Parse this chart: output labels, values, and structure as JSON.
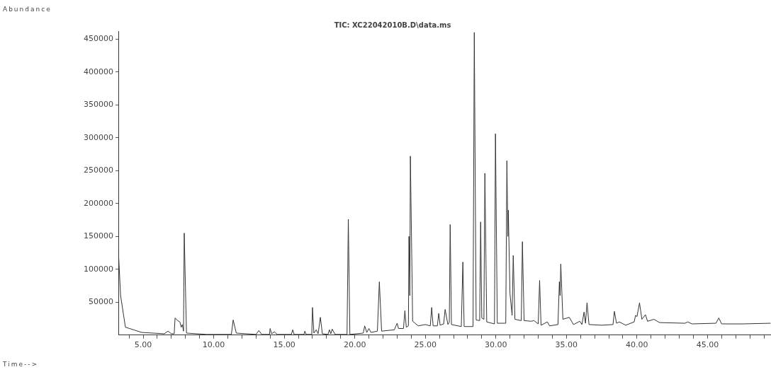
{
  "chart_data": {
    "type": "line",
    "title": "TIC: XC22042010B.D\\data.ms",
    "annotations": [
      "Abundance",
      "Time-->"
    ],
    "color": "#333333",
    "marker": "none",
    "grid": false,
    "legend": false,
    "xlim": [
      3.24,
      49.5
    ],
    "ylim": [
      0,
      462000
    ],
    "xticks": [
      {
        "value": 4,
        "label": null
      },
      {
        "value": 5,
        "label": "5.00"
      },
      {
        "value": 6,
        "label": null
      },
      {
        "value": 7,
        "label": null
      },
      {
        "value": 8,
        "label": null
      },
      {
        "value": 9,
        "label": null
      },
      {
        "value": 10,
        "label": "10.00"
      },
      {
        "value": 11,
        "label": null
      },
      {
        "value": 12,
        "label": null
      },
      {
        "value": 13,
        "label": null
      },
      {
        "value": 14,
        "label": null
      },
      {
        "value": 15,
        "label": "15.00"
      },
      {
        "value": 16,
        "label": null
      },
      {
        "value": 17,
        "label": null
      },
      {
        "value": 18,
        "label": null
      },
      {
        "value": 19,
        "label": null
      },
      {
        "value": 20,
        "label": "20.00"
      },
      {
        "value": 21,
        "label": null
      },
      {
        "value": 22,
        "label": null
      },
      {
        "value": 23,
        "label": null
      },
      {
        "value": 24,
        "label": null
      },
      {
        "value": 25,
        "label": "25.00"
      },
      {
        "value": 26,
        "label": null
      },
      {
        "value": 27,
        "label": null
      },
      {
        "value": 28,
        "label": null
      },
      {
        "value": 29,
        "label": null
      },
      {
        "value": 30,
        "label": "30.00"
      },
      {
        "value": 31,
        "label": null
      },
      {
        "value": 32,
        "label": null
      },
      {
        "value": 33,
        "label": null
      },
      {
        "value": 34,
        "label": null
      },
      {
        "value": 35,
        "label": "35.00"
      },
      {
        "value": 36,
        "label": null
      },
      {
        "value": 37,
        "label": null
      },
      {
        "value": 38,
        "label": null
      },
      {
        "value": 39,
        "label": null
      },
      {
        "value": 40,
        "label": "40.00"
      },
      {
        "value": 41,
        "label": null
      },
      {
        "value": 42,
        "label": null
      },
      {
        "value": 43,
        "label": null
      },
      {
        "value": 44,
        "label": null
      },
      {
        "value": 45,
        "label": "45.00"
      },
      {
        "value": 46,
        "label": null
      },
      {
        "value": 47,
        "label": null
      },
      {
        "value": 48,
        "label": null
      },
      {
        "value": 49,
        "label": null
      }
    ],
    "yticks": [
      50000,
      100000,
      150000,
      200000,
      250000,
      300000,
      350000,
      400000,
      450000
    ],
    "x": [
      3.24,
      3.4,
      3.74,
      4.9,
      6.5,
      6.76,
      7.0,
      7.2,
      7.26,
      7.45,
      7.6,
      7.7,
      7.78,
      7.86,
      7.91,
      8.07,
      9.5,
      11.25,
      11.38,
      11.6,
      13.0,
      13.2,
      13.4,
      13.95,
      14.0,
      14.1,
      14.3,
      14.5,
      15.5,
      15.6,
      15.7,
      16.4,
      16.46,
      16.55,
      16.95,
      17.0,
      17.1,
      17.27,
      17.4,
      17.56,
      17.7,
      18.1,
      18.2,
      18.3,
      18.4,
      18.6,
      19.45,
      19.54,
      19.65,
      20.6,
      20.7,
      20.85,
      21.0,
      21.15,
      21.6,
      21.74,
      21.9,
      22.8,
      23.0,
      23.1,
      23.45,
      23.55,
      23.65,
      23.8,
      23.84,
      23.9,
      23.94,
      24.1,
      24.5,
      25.0,
      25.35,
      25.45,
      25.55,
      25.85,
      25.95,
      26.05,
      26.3,
      26.4,
      26.6,
      26.7,
      26.76,
      26.85,
      27.55,
      27.66,
      27.75,
      28.38,
      28.47,
      28.6,
      28.85,
      28.92,
      29.0,
      29.15,
      29.22,
      29.35,
      29.9,
      29.97,
      30.1,
      30.7,
      30.78,
      30.85,
      30.88,
      31.0,
      31.15,
      31.23,
      31.35,
      31.8,
      31.88,
      32.0,
      32.5,
      32.7,
      33.0,
      33.1,
      33.2,
      33.65,
      33.8,
      34.4,
      34.5,
      34.55,
      34.6,
      34.75,
      35.2,
      35.5,
      35.95,
      36.1,
      36.25,
      36.35,
      36.46,
      36.6,
      37.5,
      38.3,
      38.4,
      38.55,
      38.75,
      39.2,
      39.8,
      39.9,
      40.0,
      40.18,
      40.35,
      40.6,
      40.75,
      41.2,
      41.6,
      43.4,
      43.6,
      43.9,
      45.6,
      45.8,
      46.0,
      47.5,
      49.47
    ],
    "values": [
      129000,
      60000,
      12000,
      4000,
      2000,
      6000,
      2000,
      2000,
      26000,
      22000,
      20000,
      12000,
      16000,
      6000,
      155000,
      3000,
      1000,
      1000,
      23000,
      3000,
      1000,
      7000,
      1000,
      1000,
      10000,
      2000,
      5000,
      1000,
      1000,
      8000,
      1000,
      1000,
      6000,
      1000,
      1000,
      42000,
      3000,
      8000,
      2000,
      27000,
      2000,
      1000,
      8000,
      2000,
      9000,
      1000,
      1000,
      176000,
      1000,
      3000,
      14000,
      4000,
      10000,
      4000,
      6000,
      81000,
      6000,
      8000,
      18000,
      10000,
      10000,
      37000,
      12000,
      14000,
      150000,
      60000,
      272000,
      21000,
      14000,
      16000,
      14000,
      42000,
      14000,
      14000,
      33000,
      15000,
      17000,
      39000,
      16000,
      20000,
      168000,
      16000,
      13000,
      111000,
      13000,
      13000,
      460000,
      23000,
      22000,
      172000,
      26000,
      24000,
      246000,
      20000,
      17000,
      306000,
      18000,
      18000,
      265000,
      150000,
      190000,
      63000,
      30000,
      121000,
      24000,
      22000,
      142000,
      22000,
      21000,
      22000,
      17000,
      83000,
      15000,
      20000,
      14000,
      16000,
      81000,
      60000,
      108000,
      24000,
      27000,
      16000,
      21000,
      16000,
      35000,
      18000,
      49000,
      16000,
      15000,
      16000,
      36000,
      18000,
      20000,
      15000,
      20000,
      30000,
      28000,
      49000,
      24000,
      31000,
      21000,
      24000,
      19000,
      18000,
      20000,
      17000,
      18000,
      26000,
      17000,
      17000,
      18000
    ]
  }
}
